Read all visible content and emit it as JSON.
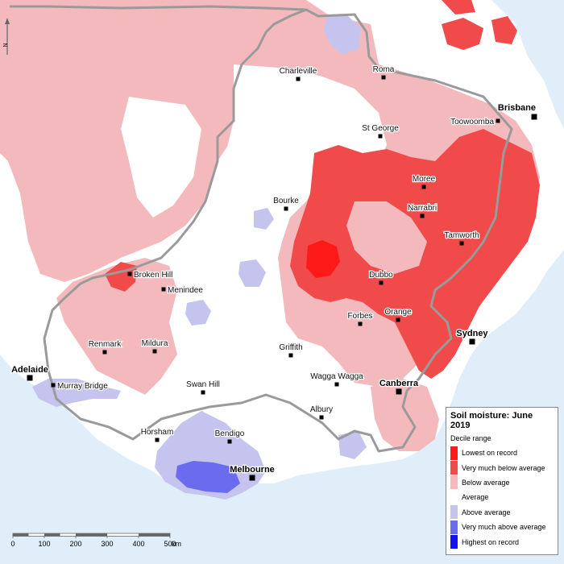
{
  "legend": {
    "title": "Soil moisture: June 2019",
    "subtitle": "Decile range",
    "items": [
      {
        "label": "Lowest on record",
        "color": "#ff1a1a"
      },
      {
        "label": "Very much below average",
        "color": "#f04a4a"
      },
      {
        "label": "Below average",
        "color": "#f4b9bd"
      },
      {
        "label": "Average",
        "color": "#ffffff"
      },
      {
        "label": "Above average",
        "color": "#c4c4ee"
      },
      {
        "label": "Very much above average",
        "color": "#6b6bef"
      },
      {
        "label": "Highest on record",
        "color": "#1010f0"
      }
    ]
  },
  "scale": {
    "ticks": [
      "0",
      "100",
      "200",
      "300",
      "400",
      "500"
    ],
    "unit": "km"
  },
  "north": "N",
  "places": {
    "charleville": "Charleville",
    "roma": "Roma",
    "brisbane": "Brisbane",
    "toowoomba": "Toowoomba",
    "st_george": "St George",
    "moree": "Moree",
    "bourke": "Bourke",
    "narrabri": "Narrabri",
    "tamworth": "Tamworth",
    "broken_hill": "Broken Hill",
    "menindee": "Menindee",
    "dubbo": "Dubbo",
    "orange": "Orange",
    "forbes": "Forbes",
    "sydney": "Sydney",
    "renmark": "Renmark",
    "mildura": "Mildura",
    "griffith": "Griffith",
    "adelaide": "Adelaide",
    "murray_bridge": "Murray Bridge",
    "wagga_wagga": "Wagga Wagga",
    "canberra": "Canberra",
    "swan_hill": "Swan Hill",
    "albury": "Albury",
    "horsham": "Horsham",
    "bendigo": "Bendigo",
    "melbourne": "Melbourne"
  },
  "colors": {
    "ocean": "#dfeef8",
    "border": "#9a9a9a"
  }
}
